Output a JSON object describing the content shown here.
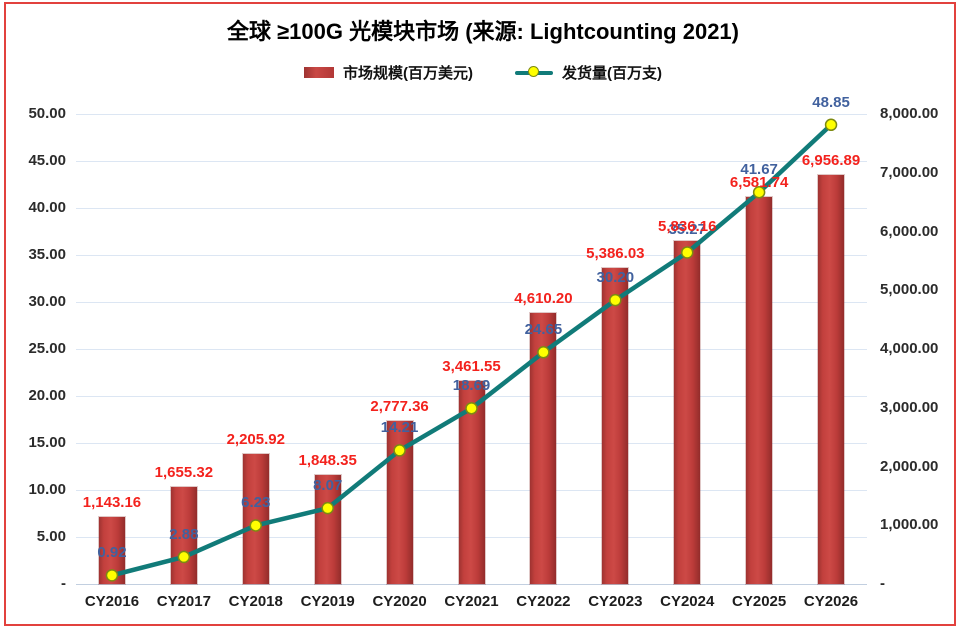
{
  "title": "全球 ≥100G 光模块市场 (来源: Lightcounting 2021)",
  "legend": {
    "bar_label": "市场规模(百万美元)",
    "line_label": "发货量(百万支)"
  },
  "colors": {
    "frame_border": "#e2413d",
    "bar_fill": "#c2403d",
    "bar_value_label": "#f3221d",
    "line_stroke": "#117b79",
    "marker_fill": "#ffff00",
    "marker_border": "#7d8a12",
    "line_value_label": "#41619e",
    "gridline": "#dce6f3",
    "axis_text": "#2b2b2b"
  },
  "chart_data": {
    "type": "combo",
    "title": "全球 ≥100G 光模块市场 (来源: Lightcounting 2021)",
    "categories": [
      "CY2016",
      "CY2017",
      "CY2018",
      "CY2019",
      "CY2020",
      "CY2021",
      "CY2022",
      "CY2023",
      "CY2024",
      "CY2025",
      "CY2026"
    ],
    "series": [
      {
        "name": "市场规模(百万美元)",
        "type": "bar",
        "axis": "right",
        "values": [
          1143.16,
          1655.32,
          2205.92,
          1848.35,
          2777.36,
          3461.55,
          4610.2,
          5386.03,
          5836.16,
          6581.74,
          6956.89
        ],
        "labels": [
          "1,143.16",
          "1,655.32",
          "2,205.92",
          "1,848.35",
          "2,777.36",
          "3,461.55",
          "4,610.20",
          "5,386.03",
          "5,836.16",
          "6,581.74",
          "6,956.89"
        ]
      },
      {
        "name": "发货量(百万支)",
        "type": "line",
        "axis": "left",
        "values": [
          0.92,
          2.88,
          6.23,
          8.07,
          14.21,
          18.69,
          24.65,
          30.2,
          35.27,
          41.67,
          48.85
        ],
        "labels": [
          "0.92",
          "2.88",
          "6.23",
          "8.07",
          "14.21",
          "18.69",
          "24.65",
          "30.20",
          "35.27",
          "41.67",
          "48.85"
        ]
      }
    ],
    "left_axis": {
      "min": 0,
      "max": 50,
      "step": 5,
      "ticks": [
        "50.00",
        "45.00",
        "40.00",
        "35.00",
        "30.00",
        "25.00",
        "20.00",
        "15.00",
        "10.00",
        "5.00",
        "-"
      ]
    },
    "right_axis": {
      "min": 0,
      "max": 8000,
      "step": 1000,
      "ticks": [
        "8,000.00",
        "7,000.00",
        "6,000.00",
        "5,000.00",
        "4,000.00",
        "3,000.00",
        "2,000.00",
        "1,000.00",
        "-"
      ]
    },
    "grid": true,
    "legend_position": "top"
  }
}
